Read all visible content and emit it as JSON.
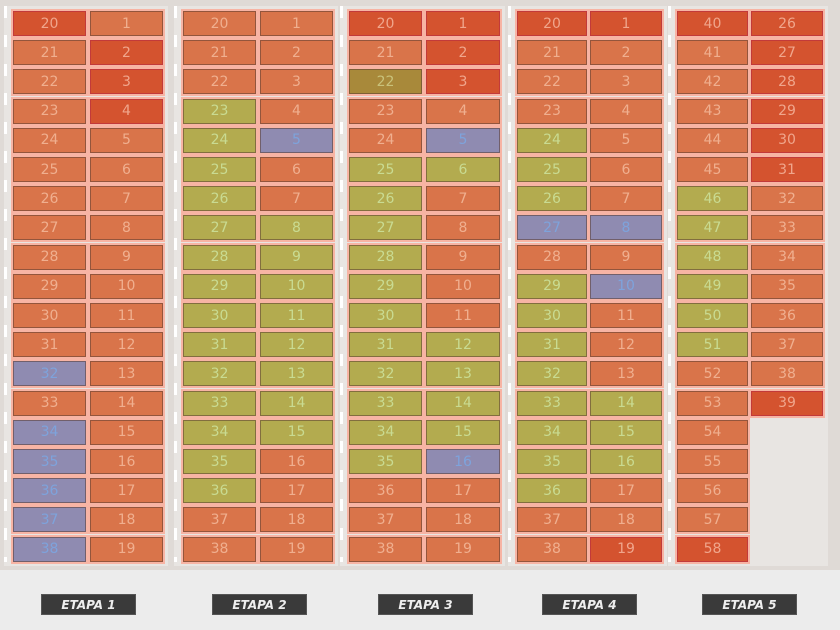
{
  "colors": {
    "o": "#d9744a",
    "r": "#d4532f",
    "g": "#b3ab4f",
    "b": "#8f8bb1",
    "d": "#a8893a"
  },
  "text_colors": {
    "o": "rgba(255,215,190,0.6)",
    "r": "rgba(255,210,190,0.65)",
    "g": "#c9db92",
    "b": "#7ea3dc",
    "d": "#c9c27a"
  },
  "stages": [
    {
      "label": "ETAPA 1",
      "left": [
        [
          20,
          "r"
        ],
        [
          21,
          "o"
        ],
        [
          22,
          "o"
        ],
        [
          23,
          "o"
        ],
        [
          24,
          "o"
        ],
        [
          25,
          "o"
        ],
        [
          26,
          "o"
        ],
        [
          27,
          "o"
        ],
        [
          28,
          "o"
        ],
        [
          29,
          "o"
        ],
        [
          30,
          "o"
        ],
        [
          31,
          "o"
        ],
        [
          32,
          "b"
        ],
        [
          33,
          "o"
        ],
        [
          34,
          "b"
        ],
        [
          35,
          "b"
        ],
        [
          36,
          "b"
        ],
        [
          37,
          "b"
        ],
        [
          38,
          "b"
        ]
      ],
      "right": [
        [
          1,
          "o"
        ],
        [
          2,
          "r"
        ],
        [
          3,
          "r"
        ],
        [
          4,
          "r"
        ],
        [
          5,
          "o"
        ],
        [
          6,
          "o"
        ],
        [
          7,
          "o"
        ],
        [
          8,
          "o"
        ],
        [
          9,
          "o"
        ],
        [
          10,
          "o"
        ],
        [
          11,
          "o"
        ],
        [
          12,
          "o"
        ],
        [
          13,
          "o"
        ],
        [
          14,
          "o"
        ],
        [
          15,
          "o"
        ],
        [
          16,
          "o"
        ],
        [
          17,
          "o"
        ],
        [
          18,
          "o"
        ],
        [
          19,
          "o"
        ]
      ]
    },
    {
      "label": "ETAPA 2",
      "left": [
        [
          20,
          "o"
        ],
        [
          21,
          "o"
        ],
        [
          22,
          "o"
        ],
        [
          23,
          "g"
        ],
        [
          24,
          "g"
        ],
        [
          25,
          "g"
        ],
        [
          26,
          "g"
        ],
        [
          27,
          "g"
        ],
        [
          28,
          "g"
        ],
        [
          29,
          "g"
        ],
        [
          30,
          "g"
        ],
        [
          31,
          "g"
        ],
        [
          32,
          "g"
        ],
        [
          33,
          "g"
        ],
        [
          34,
          "g"
        ],
        [
          35,
          "g"
        ],
        [
          36,
          "g"
        ],
        [
          37,
          "o"
        ],
        [
          38,
          "o"
        ]
      ],
      "right": [
        [
          1,
          "o"
        ],
        [
          2,
          "o"
        ],
        [
          3,
          "o"
        ],
        [
          4,
          "o"
        ],
        [
          5,
          "b"
        ],
        [
          6,
          "o"
        ],
        [
          7,
          "o"
        ],
        [
          8,
          "g"
        ],
        [
          9,
          "g"
        ],
        [
          10,
          "g"
        ],
        [
          11,
          "g"
        ],
        [
          12,
          "g"
        ],
        [
          13,
          "g"
        ],
        [
          14,
          "g"
        ],
        [
          15,
          "g"
        ],
        [
          16,
          "o"
        ],
        [
          17,
          "o"
        ],
        [
          18,
          "o"
        ],
        [
          19,
          "o"
        ]
      ]
    },
    {
      "label": "ETAPA 3",
      "left": [
        [
          20,
          "r"
        ],
        [
          21,
          "o"
        ],
        [
          22,
          "d"
        ],
        [
          23,
          "o"
        ],
        [
          24,
          "o"
        ],
        [
          25,
          "g"
        ],
        [
          26,
          "g"
        ],
        [
          27,
          "g"
        ],
        [
          28,
          "g"
        ],
        [
          29,
          "g"
        ],
        [
          30,
          "g"
        ],
        [
          31,
          "g"
        ],
        [
          32,
          "g"
        ],
        [
          33,
          "g"
        ],
        [
          34,
          "g"
        ],
        [
          35,
          "g"
        ],
        [
          36,
          "o"
        ],
        [
          37,
          "o"
        ],
        [
          38,
          "o"
        ]
      ],
      "right": [
        [
          1,
          "r"
        ],
        [
          2,
          "r"
        ],
        [
          3,
          "r"
        ],
        [
          4,
          "o"
        ],
        [
          5,
          "b"
        ],
        [
          6,
          "g"
        ],
        [
          7,
          "o"
        ],
        [
          8,
          "o"
        ],
        [
          9,
          "o"
        ],
        [
          10,
          "o"
        ],
        [
          11,
          "o"
        ],
        [
          12,
          "g"
        ],
        [
          13,
          "g"
        ],
        [
          14,
          "g"
        ],
        [
          15,
          "g"
        ],
        [
          16,
          "b"
        ],
        [
          17,
          "o"
        ],
        [
          18,
          "o"
        ],
        [
          19,
          "o"
        ]
      ]
    },
    {
      "label": "ETAPA 4",
      "left": [
        [
          20,
          "r"
        ],
        [
          21,
          "o"
        ],
        [
          22,
          "o"
        ],
        [
          23,
          "o"
        ],
        [
          24,
          "g"
        ],
        [
          25,
          "g"
        ],
        [
          26,
          "g"
        ],
        [
          27,
          "b"
        ],
        [
          28,
          "o"
        ],
        [
          29,
          "g"
        ],
        [
          30,
          "g"
        ],
        [
          31,
          "g"
        ],
        [
          32,
          "g"
        ],
        [
          33,
          "g"
        ],
        [
          34,
          "g"
        ],
        [
          35,
          "g"
        ],
        [
          36,
          "g"
        ],
        [
          37,
          "o"
        ],
        [
          38,
          "o"
        ]
      ],
      "right": [
        [
          1,
          "r"
        ],
        [
          2,
          "o"
        ],
        [
          3,
          "o"
        ],
        [
          4,
          "o"
        ],
        [
          5,
          "o"
        ],
        [
          6,
          "o"
        ],
        [
          7,
          "o"
        ],
        [
          8,
          "b"
        ],
        [
          9,
          "o"
        ],
        [
          10,
          "b"
        ],
        [
          11,
          "o"
        ],
        [
          12,
          "o"
        ],
        [
          13,
          "o"
        ],
        [
          14,
          "g"
        ],
        [
          15,
          "g"
        ],
        [
          16,
          "g"
        ],
        [
          17,
          "o"
        ],
        [
          18,
          "o"
        ],
        [
          19,
          "r"
        ]
      ]
    },
    {
      "label": "ETAPA 5",
      "left": [
        [
          40,
          "r"
        ],
        [
          41,
          "o"
        ],
        [
          42,
          "o"
        ],
        [
          43,
          "o"
        ],
        [
          44,
          "o"
        ],
        [
          45,
          "o"
        ],
        [
          46,
          "g"
        ],
        [
          47,
          "g"
        ],
        [
          48,
          "g"
        ],
        [
          49,
          "g"
        ],
        [
          50,
          "g"
        ],
        [
          51,
          "g"
        ],
        [
          52,
          "o"
        ],
        [
          53,
          "o"
        ],
        [
          54,
          "o"
        ],
        [
          55,
          "o"
        ],
        [
          56,
          "o"
        ],
        [
          57,
          "o"
        ],
        [
          58,
          "r"
        ]
      ],
      "right": [
        [
          26,
          "r"
        ],
        [
          27,
          "r"
        ],
        [
          28,
          "r"
        ],
        [
          29,
          "r"
        ],
        [
          30,
          "r"
        ],
        [
          31,
          "r"
        ],
        [
          32,
          "o"
        ],
        [
          33,
          "o"
        ],
        [
          34,
          "o"
        ],
        [
          35,
          "o"
        ],
        [
          36,
          "o"
        ],
        [
          37,
          "o"
        ],
        [
          38,
          "o"
        ],
        [
          39,
          "r"
        ]
      ]
    }
  ]
}
